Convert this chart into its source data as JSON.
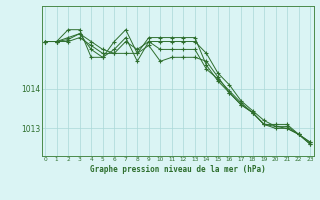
{
  "title": "Graphe pression niveau de la mer (hPa)",
  "xlabel_hours": [
    0,
    1,
    2,
    3,
    4,
    5,
    6,
    7,
    8,
    9,
    10,
    11,
    12,
    13,
    14,
    15,
    16,
    17,
    18,
    19,
    20,
    21,
    22,
    23
  ],
  "series": [
    [
      1015.2,
      1015.2,
      1015.5,
      1015.5,
      1014.8,
      1014.8,
      1015.2,
      1015.5,
      1014.9,
      1015.3,
      1015.3,
      1015.3,
      1015.3,
      1015.3,
      1014.6,
      1014.2,
      1013.9,
      1013.6,
      1013.4,
      1013.1,
      1013.0,
      1013.0,
      1012.85,
      1012.65
    ],
    [
      1015.2,
      1015.2,
      1015.2,
      1015.3,
      1015.1,
      1014.9,
      1014.9,
      1014.9,
      1014.9,
      1015.1,
      1014.7,
      1014.8,
      1014.8,
      1014.8,
      1014.7,
      1014.3,
      1013.9,
      1013.6,
      1013.4,
      1013.1,
      1013.1,
      1013.1,
      1012.85,
      1012.65
    ],
    [
      1015.2,
      1015.2,
      1015.3,
      1015.4,
      1015.0,
      1014.8,
      1015.0,
      1015.3,
      1014.7,
      1015.2,
      1015.0,
      1015.0,
      1015.0,
      1015.0,
      1014.5,
      1014.25,
      1013.95,
      1013.65,
      1013.4,
      1013.1,
      1013.05,
      1013.05,
      1012.85,
      1012.6
    ],
    [
      1015.2,
      1015.2,
      1015.25,
      1015.4,
      1015.2,
      1015.0,
      1014.9,
      1015.2,
      1015.0,
      1015.2,
      1015.2,
      1015.2,
      1015.2,
      1015.2,
      1014.9,
      1014.4,
      1014.1,
      1013.7,
      1013.45,
      1013.2,
      1013.05,
      1013.0,
      1012.85,
      1012.6
    ]
  ],
  "line_color": "#2d6e2d",
  "marker_color": "#2d6e2d",
  "bg_color": "#daf4f4",
  "grid_color": "#aad8d8",
  "axis_label_color": "#2d6e2d",
  "title_color": "#2d6e2d",
  "ylim": [
    1012.3,
    1016.1
  ],
  "yticks": [
    1013.0,
    1014.0
  ],
  "xtick_labels": [
    "0",
    "1",
    "2",
    "3",
    "4",
    "5",
    "6",
    "7",
    "8",
    "9",
    "10",
    "11",
    "12",
    "13",
    "14",
    "15",
    "16",
    "17",
    "18",
    "19",
    "20",
    "21",
    "22",
    "23"
  ]
}
